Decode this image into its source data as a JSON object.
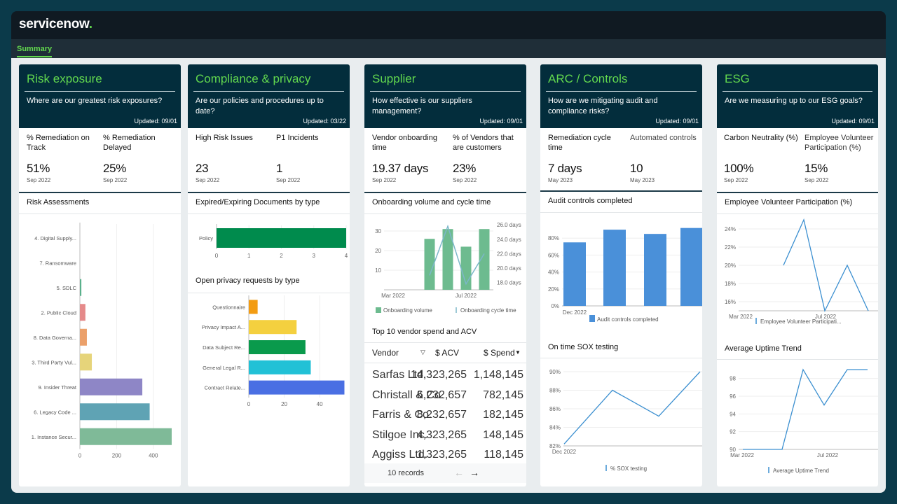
{
  "app": {
    "logo_text": "servicenow",
    "logo_dot": ".",
    "tab": "Summary",
    "brand_green": "#62d84e",
    "header_bg": "#032d3c"
  },
  "cards": [
    {
      "title": "Risk exposure",
      "question": "Where are our greatest risk exposures?",
      "updated": "Updated: 09/01",
      "metrics": [
        {
          "label": "% Remediation on Track",
          "value": "51%",
          "sub": "Sep 2022"
        },
        {
          "label": "% Remediation Delayed",
          "value": "25%",
          "sub": "Sep 2022"
        }
      ],
      "section1": "Risk Assessments"
    },
    {
      "title": "Compliance & privacy",
      "question": "Are our policies and procedures up to date?",
      "updated": "Updated: 03/22",
      "metrics": [
        {
          "label": "High Risk Issues",
          "value": "23",
          "sub": "Sep 2022"
        },
        {
          "label": "P1 Incidents",
          "value": "1",
          "sub": "Sep 2022"
        }
      ],
      "section1": "Expired/Expiring Documents by type",
      "section2": "Open privacy requests by type"
    },
    {
      "title": "Supplier",
      "question": "How effective is our suppliers management?",
      "updated": "Updated: 09/01",
      "metrics": [
        {
          "label": "Vendor onboarding time",
          "value": "19.37 days",
          "sub": "Sep 2022"
        },
        {
          "label": "% of Vendors that are customers",
          "value": "23%",
          "sub": "Sep 2022"
        }
      ],
      "section1": "Onboarding volume and cycle time",
      "section2": "Top 10 vendor spend and ACV",
      "table": {
        "headers": [
          "Vendor",
          "$ ACV",
          "$ Spend"
        ],
        "rows": [
          [
            "Sarfas Ltd.",
            "14,323,265",
            "1,148,145"
          ],
          [
            "Christall & Co.",
            "6,232,657",
            "782,145"
          ],
          [
            "Farris & Co.",
            "8,232,657",
            "182,145"
          ],
          [
            "Stilgoe Inc.",
            "4,323,265",
            "148,145"
          ],
          [
            "Aggiss Ltd.",
            "1,323,265",
            "118,145"
          ]
        ],
        "records": "10 records"
      }
    },
    {
      "title": "ARC / Controls",
      "question": "How are we mitigating audit and compliance risks?",
      "updated": "Updated: 09/01",
      "metrics": [
        {
          "label": "Remediation cycle time",
          "value": "7 days",
          "sub": "May 2023"
        },
        {
          "label": "Automated controls",
          "value": "10",
          "sub": "May 2023"
        }
      ],
      "section1": "Audit controls completed",
      "section2": "On time SOX testing"
    },
    {
      "title": "ESG",
      "question": "Are we measuring up to our ESG goals?",
      "updated": "Updated: 09/01",
      "metrics": [
        {
          "label": "Carbon Neutrality (%)",
          "value": "100%",
          "sub": "Sep 2022"
        },
        {
          "label": "Employee Volunteer Participation (%)",
          "value": "15%",
          "sub": "Sep 2022"
        }
      ],
      "section1": "Employee Volunteer Participation (%)",
      "section2": "Average Uptime Trend"
    }
  ],
  "chart_data": [
    {
      "id": "risk",
      "type": "bar",
      "orientation": "horizontal",
      "categories": [
        "4. Digital Supply...",
        "7. Ransomware",
        "5. SDLC",
        "2. Public Cloud",
        "8. Data Governa...",
        "3. Third Party Vul...",
        "9. Insider Threat",
        "6. Legacy Code ...",
        "1. Instance Secur..."
      ],
      "values": [
        0,
        0,
        8,
        30,
        38,
        65,
        340,
        380,
        500
      ],
      "colors": [
        "#7fc79b",
        "#7fc79b",
        "#5ab08c",
        "#e58a8a",
        "#eba06a",
        "#e6d47a",
        "#8e86c6",
        "#5fa3b4",
        "#7fba98"
      ],
      "xticks": [
        "0",
        "200",
        "400"
      ],
      "xlim": [
        0,
        500
      ]
    },
    {
      "id": "docs",
      "type": "bar",
      "orientation": "horizontal",
      "categories": [
        "Policy"
      ],
      "values": [
        4
      ],
      "color": "#008b4d",
      "xticks": [
        "0",
        "1",
        "2",
        "3",
        "4"
      ],
      "xlim": [
        0,
        4
      ]
    },
    {
      "id": "privacy",
      "type": "bar",
      "orientation": "horizontal",
      "categories": [
        "Questionnaire",
        "Privacy Impact A...",
        "Data Subject Re...",
        "General Legal R...",
        "Contract Relate..."
      ],
      "values": [
        5,
        27,
        32,
        35,
        54
      ],
      "colors": [
        "#f39c12",
        "#f4d03f",
        "#0a9a4c",
        "#22c1d6",
        "#4a6fe3"
      ],
      "xticks": [
        "0",
        "20",
        "40"
      ],
      "xlim": [
        0,
        55
      ]
    },
    {
      "id": "onboarding",
      "type": "bar",
      "categories": [
        "Mar 2022",
        "Apr 2022",
        "May 2022",
        "Jun 2022",
        "Jul 2022",
        "Aug 2022"
      ],
      "xticks": [
        "Mar 2022",
        "Jul 2022"
      ],
      "series": [
        {
          "name": "Onboarding volume",
          "type": "bar",
          "values": [
            0,
            0,
            26,
            31,
            22,
            31
          ],
          "color": "#6dbb8f"
        },
        {
          "name": "Onboarding cycle time",
          "type": "line",
          "values": [
            null,
            null,
            19.0,
            25.8,
            17.8,
            22.0
          ],
          "color": "#7cb7c9"
        }
      ],
      "yticks_left": [
        "10",
        "20",
        "30"
      ],
      "yticks_right": [
        "18.0 days",
        "20.0 days",
        "22.0 days",
        "24.0 days",
        "26.0 days"
      ],
      "ylim_left": [
        0,
        35
      ],
      "ylim_right": [
        17,
        26.5
      ]
    },
    {
      "id": "audit",
      "type": "bar",
      "categories": [
        "Dec 2022",
        "Jan 2023",
        "Feb 2023",
        "Mar 2023"
      ],
      "xticks": [
        "Dec 2022"
      ],
      "series": [
        {
          "name": "Audit controls completed",
          "values": [
            75,
            90,
            85,
            92
          ],
          "color": "#4a90d9"
        }
      ],
      "yticks": [
        "0%",
        "20%",
        "40%",
        "60%",
        "80%"
      ],
      "ylim": [
        0,
        100
      ]
    },
    {
      "id": "sox",
      "type": "line",
      "x": [
        "Dec 2022",
        "Jan 2023",
        "Feb 2023",
        "Mar 2023",
        "Apr 2023"
      ],
      "xticks": [
        "Dec 2022"
      ],
      "series": [
        {
          "name": "% SOX testing",
          "values": [
            82.2,
            88.0,
            85.2,
            90.0,
            90.0
          ],
          "color": "#3b8fd0"
        }
      ],
      "yticks": [
        "82%",
        "84%",
        "86%",
        "88%",
        "90%"
      ],
      "ylim": [
        82,
        90
      ]
    },
    {
      "id": "volunteer",
      "type": "line",
      "x": [
        "Mar 2022",
        "Apr 2022",
        "May 2022",
        "Jun 2022",
        "Jul 2022",
        "Aug 2022",
        "Sep 2022"
      ],
      "xticks": [
        "Mar 2022",
        "Jul 2022"
      ],
      "series": [
        {
          "name": "Employee Volunteer Participati...",
          "values": [
            null,
            20,
            25,
            15,
            20,
            15,
            null
          ],
          "color": "#3b8fd0"
        }
      ],
      "yticks": [
        "16%",
        "18%",
        "20%",
        "22%",
        "24%"
      ],
      "ylim": [
        15,
        25
      ]
    },
    {
      "id": "uptime",
      "type": "line",
      "x": [
        "Mar 2022",
        "Apr 2022",
        "May 2022",
        "Jun 2022",
        "Jul 2022",
        "Aug 2022",
        "Sep 2022"
      ],
      "xticks": [
        "Mar 2022",
        "Jul 2022"
      ],
      "series": [
        {
          "name": "Average Uptime Trend",
          "values": [
            90,
            90,
            90,
            99,
            95,
            99,
            99
          ],
          "color": "#3b8fd0"
        }
      ],
      "yticks": [
        "90",
        "92",
        "94",
        "96",
        "98"
      ],
      "ylim": [
        90,
        99
      ]
    }
  ]
}
